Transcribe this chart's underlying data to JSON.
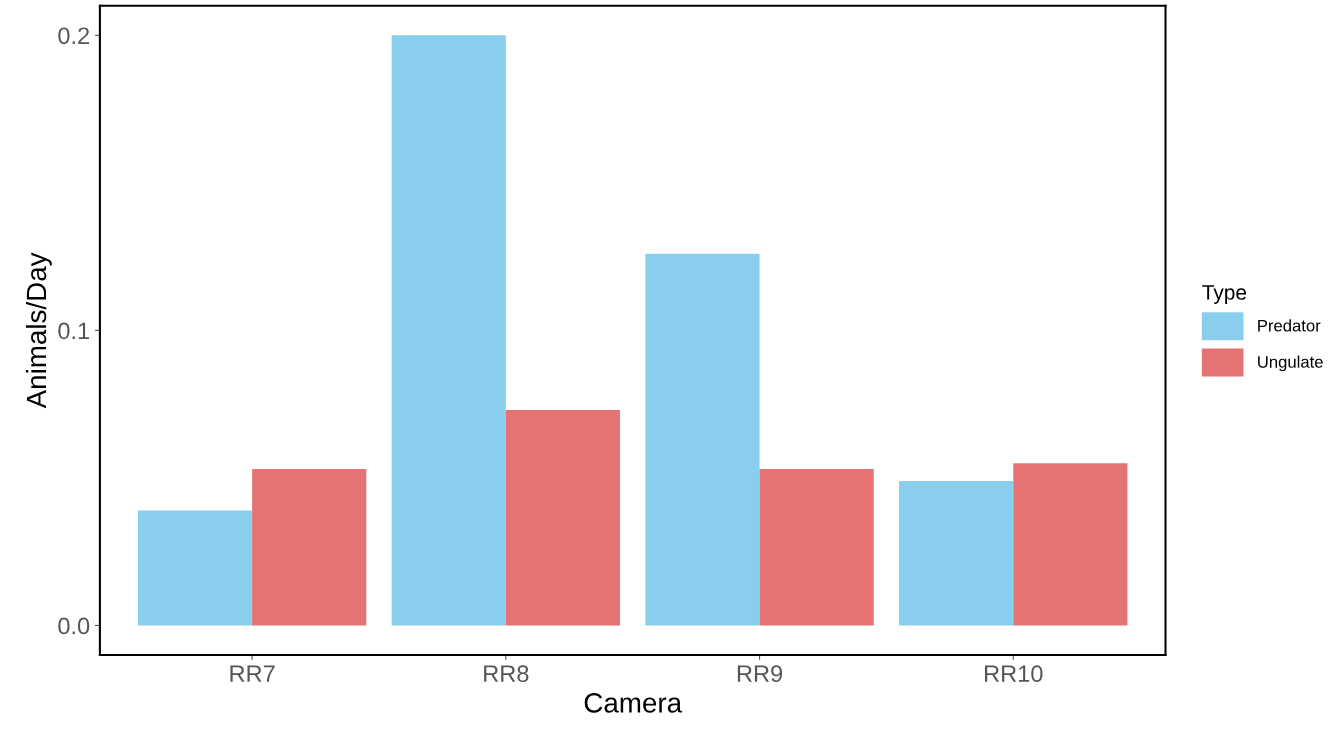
{
  "chart_data": {
    "type": "bar",
    "xlabel": "Camera",
    "ylabel": "Animals/Day",
    "legend_title": "Type",
    "categories": [
      "RR7",
      "RR8",
      "RR9",
      "RR10"
    ],
    "series": [
      {
        "name": "Predator",
        "color": "#89cfed",
        "values": [
          0.039,
          0.2,
          0.126,
          0.049
        ]
      },
      {
        "name": "Ungulate",
        "color": "#e57373",
        "values": [
          0.053,
          0.073,
          0.053,
          0.055
        ]
      }
    ],
    "ylim": [
      -0.01,
      0.21
    ],
    "yticks": [
      {
        "value": 0,
        "label": "0.0"
      },
      {
        "value": 0.1,
        "label": "0.1"
      },
      {
        "value": 0.2,
        "label": "0.2"
      }
    ],
    "grid": false,
    "legend": "right"
  }
}
